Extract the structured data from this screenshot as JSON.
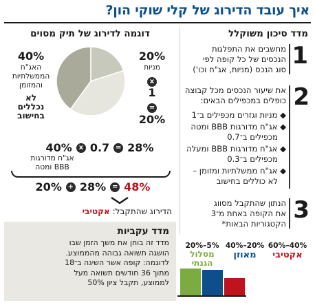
{
  "title": "איך עובד הדירוג של קלי שוקי הון?",
  "left": {
    "heading": "מדד סיכון משוקלל",
    "steps": [
      {
        "num": "1",
        "text": [
          "מחשבים את התפלגות",
          "הנכסים של כל קופה לפי",
          "סוג הנכס (מניות, אג\"ח וכו')"
        ]
      },
      {
        "num": "2",
        "intro": [
          "את שיעור הנכסים מכל קבוצה",
          "כופלים במכפילים הבאים:"
        ],
        "bullets": [
          [
            "מניות וגזרים מכפילים ב־1"
          ],
          [
            "אג\"ח מדורגות BBB ומטה",
            "מכפילים ב־0.7"
          ],
          [
            "אג\"ח מדורגות BBB ומעלה",
            "מכפילים ב־0.3"
          ],
          [
            "אג\"ח ממשלתיות ומזומן –",
            "לא כוללים בחישוב"
          ]
        ]
      },
      {
        "num": "3",
        "text": [
          "הנתון שהתקבל מסווג",
          "את הקופה באחת מ־3",
          "הקטגוריות הבאות*"
        ]
      }
    ],
    "legend": [
      {
        "range": "60%–40%",
        "label": "אקטיבי",
        "color": "#c1121f"
      },
      {
        "range": "40%–20%",
        "label": "מאוזן",
        "color": "#0d4f8c"
      },
      {
        "range": "20%–5%",
        "label": "מסלול הגנתי",
        "color": "#7cac3f"
      }
    ]
  },
  "right": {
    "heading": "דוגמה לדירוג של תיק מסוים",
    "pie": {
      "slices": [
        {
          "label": "אג\"ח ממשלתיות והמזומן",
          "value": 40,
          "color": "#a9aa99"
        },
        {
          "label": "מניות",
          "value": 20,
          "color": "#c8c9bd"
        },
        {
          "label": "אג\"ח מדורגות BBB ומטה",
          "value": 40,
          "color": "#e6e6df"
        }
      ]
    },
    "seg_govt": {
      "pct": "40%",
      "lines": [
        "האג\"ח",
        "הממשלתיות",
        "והמזומן"
      ],
      "note": [
        "לא",
        "נכללים",
        "בחישוב"
      ]
    },
    "seg_stocks": {
      "pct": "20%",
      "label": "מניות",
      "mult": "1",
      "result": "20%"
    },
    "seg_bonds": {
      "pct": "40%",
      "lines": [
        "אג\"ח מדורגות",
        "BBB ומטה"
      ],
      "mult": "0.7",
      "result": "28%"
    },
    "sum": {
      "a": "20%",
      "b": "28%",
      "total": "48%"
    },
    "result_prefix": "הדירוג שהתקבל:",
    "result_value": "אקטיבי"
  },
  "box": {
    "heading": "מדד עקביות",
    "lines": [
      "מדד זה בוחן את משך הזמן שבו",
      "הושגה תשואה גבוהה מהממוצע.",
      "לדוגמה: קופה אשר השיגה ב־18",
      "מתוך 36 חודשים תשואה מעל",
      "לממוצע, תקבל ציון 50%"
    ]
  },
  "symbols": {
    "times": "x",
    "equals": "=",
    "plus": "+"
  }
}
